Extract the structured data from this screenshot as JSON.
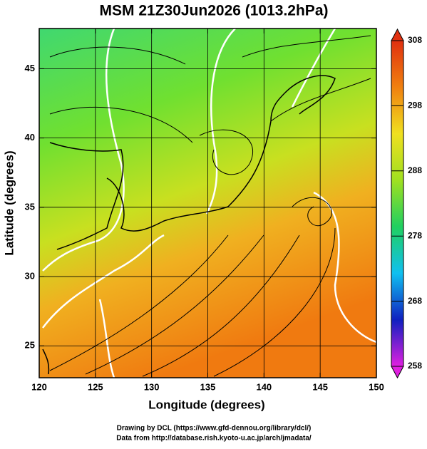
{
  "chart_data": {
    "type": "map",
    "title": "MSM 21Z30Jun2026 (1013.2hPa)",
    "x_label": "Longitude (degrees)",
    "y_label": "Latitude  (degrees)",
    "xlim": [
      120,
      150
    ],
    "xticks": [
      120,
      125,
      130,
      135,
      140,
      145,
      150
    ],
    "ylim": [
      22.7,
      47.9
    ],
    "yticks": [
      25,
      30,
      35,
      40,
      45
    ],
    "grid": true,
    "colorbar": {
      "lim": [
        258,
        308
      ],
      "ticks": [
        258,
        268,
        278,
        288,
        298,
        308
      ],
      "colors": [
        "#e020e0",
        "#1020c0",
        "#10c0f0",
        "#20d060",
        "#a0e020",
        "#f0e020",
        "#f08010",
        "#e03010"
      ]
    },
    "footer": [
      "Drawing by DCL (https://www.gfd-dennou.org/library/dcl/)",
      "Data from http://database.rish.kyoto-u.ac.jp/arch/jmadata/"
    ]
  }
}
